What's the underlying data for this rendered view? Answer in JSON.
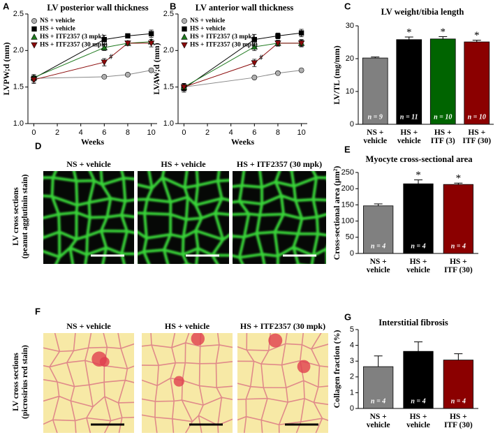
{
  "chart_data": [
    {
      "type": "line",
      "panel": "A",
      "title": "LV posterior wall thickness",
      "ylabel": "LVPW;d (mm)",
      "xlabel": "Weeks",
      "x": [
        0,
        6,
        8,
        10
      ],
      "xlim": [
        -0.5,
        10.5
      ],
      "xticks": [
        0,
        2,
        4,
        6,
        8,
        10
      ],
      "ylim": [
        1.0,
        2.5
      ],
      "yticks": [
        {
          "value": 1.0,
          "label": "1.0"
        },
        {
          "value": 1.5,
          "label": "1.5"
        },
        {
          "value": 2.0,
          "label": "2.0"
        },
        {
          "value": 2.5,
          "label": "2.5"
        }
      ],
      "legend": "upper-left",
      "series": [
        {
          "name": "NS + vehicle",
          "color": "#b0b0b0",
          "marker": "circle",
          "values": [
            1.62,
            1.64,
            1.67,
            1.73
          ],
          "errors": [
            0.05,
            0.02,
            0.02,
            0.02
          ]
        },
        {
          "name": "HS + vehicle",
          "color": "#000000",
          "marker": "square",
          "values": [
            1.62,
            2.15,
            2.2,
            2.23
          ],
          "errors": [
            0.05,
            0.06,
            0.03,
            0.05
          ]
        },
        {
          "name": "HS + ITF2357 (3 mpk)",
          "color": "#1e7a1e",
          "marker": "triangle",
          "values": [
            1.63,
            2.04,
            2.1,
            2.12
          ],
          "errors": [
            0.04,
            0.04,
            0.03,
            0.03
          ]
        },
        {
          "name": "HS + ITF2357 (30 mpk)",
          "color": "#8b0a0a",
          "marker": "triangle-down",
          "values": [
            1.6,
            1.84,
            2.1,
            2.1
          ],
          "errors": [
            0.05,
            0.05,
            0.03,
            0.05
          ],
          "annotations": [
            null,
            "#",
            null,
            null
          ]
        }
      ]
    },
    {
      "type": "line",
      "panel": "B",
      "title": "LV anterior wall thickness",
      "ylabel": "LVAW;d (mm)",
      "xlabel": "Weeks",
      "x": [
        0,
        6,
        8,
        10
      ],
      "xlim": [
        -0.5,
        10.5
      ],
      "xticks": [
        0,
        2,
        4,
        6,
        8,
        10
      ],
      "ylim": [
        1.0,
        2.5
      ],
      "yticks": [
        {
          "value": 1.0,
          "label": "1.0"
        },
        {
          "value": 1.5,
          "label": "1.5"
        },
        {
          "value": 2.0,
          "label": "2.0"
        },
        {
          "value": 2.5,
          "label": "2.5"
        }
      ],
      "legend": "upper-left",
      "series": [
        {
          "name": "NS + vehicle",
          "color": "#b0b0b0",
          "marker": "circle",
          "values": [
            1.5,
            1.63,
            1.69,
            1.73
          ],
          "errors": [
            0.05,
            0.02,
            0.02,
            0.02
          ]
        },
        {
          "name": "HS + vehicle",
          "color": "#000000",
          "marker": "square",
          "values": [
            1.48,
            2.15,
            2.2,
            2.24
          ],
          "errors": [
            0.05,
            0.07,
            0.04,
            0.05
          ]
        },
        {
          "name": "HS + ITF2357 (3 mpk)",
          "color": "#1e7a1e",
          "marker": "triangle",
          "values": [
            1.5,
            2.05,
            2.1,
            2.1
          ],
          "errors": [
            0.04,
            0.05,
            0.03,
            0.04
          ]
        },
        {
          "name": "HS + ITF2357 (30 mpk)",
          "color": "#8b0a0a",
          "marker": "triangle-down",
          "values": [
            1.5,
            1.83,
            2.1,
            2.1
          ],
          "errors": [
            0.05,
            0.05,
            0.04,
            0.05
          ],
          "annotations": [
            null,
            "#",
            null,
            null
          ]
        }
      ]
    },
    {
      "type": "bar",
      "panel": "C",
      "title": "LV weight/tibia length",
      "ylabel": "LV/TL (mg/mm)",
      "categories": [
        "NS +\nvehicle",
        "HS +\nvehicle",
        "HS +\nITF (3)",
        "HS +\nITF (30)"
      ],
      "values": [
        20.2,
        25.8,
        26.0,
        25.1
      ],
      "errors": [
        0.3,
        0.8,
        0.7,
        0.5
      ],
      "colors": [
        "#808080",
        "#000000",
        "#006400",
        "#8b0000"
      ],
      "n_labels": [
        "n = 9",
        "n = 11",
        "n = 10",
        "n = 10"
      ],
      "annotations": [
        null,
        "*",
        "*",
        "*"
      ],
      "ylim": [
        0,
        30
      ],
      "yticks": [
        0,
        10,
        20,
        30
      ]
    },
    {
      "type": "bar",
      "panel": "E",
      "title": "Myocyte cross-sectional area",
      "ylabel": "Cross-sectional area (µm²)",
      "categories": [
        "NS +\nvehicle",
        "HS +\nvehicle",
        "HS +\nITF (30)"
      ],
      "values": [
        147,
        215,
        213
      ],
      "errors": [
        6,
        12,
        4
      ],
      "colors": [
        "#808080",
        "#000000",
        "#8b0000"
      ],
      "n_labels": [
        "n = 4",
        "n = 4",
        "n = 4"
      ],
      "annotations": [
        null,
        "*",
        "*"
      ],
      "ylim": [
        0,
        250
      ],
      "yticks": [
        0,
        50,
        100,
        150,
        200,
        250
      ]
    },
    {
      "type": "bar",
      "panel": "G",
      "title": "Interstitial fibrosis",
      "ylabel": "Collagen fraction (%)",
      "categories": [
        "NS +\nvehicle",
        "HS +\nvehicle",
        "HS +\nITF (30)"
      ],
      "values": [
        2.65,
        3.62,
        3.07
      ],
      "errors": [
        0.68,
        0.6,
        0.4
      ],
      "colors": [
        "#808080",
        "#000000",
        "#8b0000"
      ],
      "n_labels": [
        "n = 4",
        "n = 4",
        "n = 4"
      ],
      "ylim": [
        0,
        5
      ],
      "yticks": [
        0,
        1,
        2,
        3,
        4,
        5
      ]
    }
  ],
  "micrographs": [
    {
      "panel": "D",
      "row_label": "LV cross sections\n(peanut agglutinin stain)",
      "images": [
        "NS + vehicle",
        "HS + vehicle",
        "HS + ITF2357 (30 mpk)"
      ]
    },
    {
      "panel": "F",
      "row_label": "LV cross sections\n(picrosirius red stain)",
      "images": [
        "NS + vehicle",
        "HS + vehicle",
        "HS + ITF2357 (30 mpk)"
      ]
    }
  ]
}
